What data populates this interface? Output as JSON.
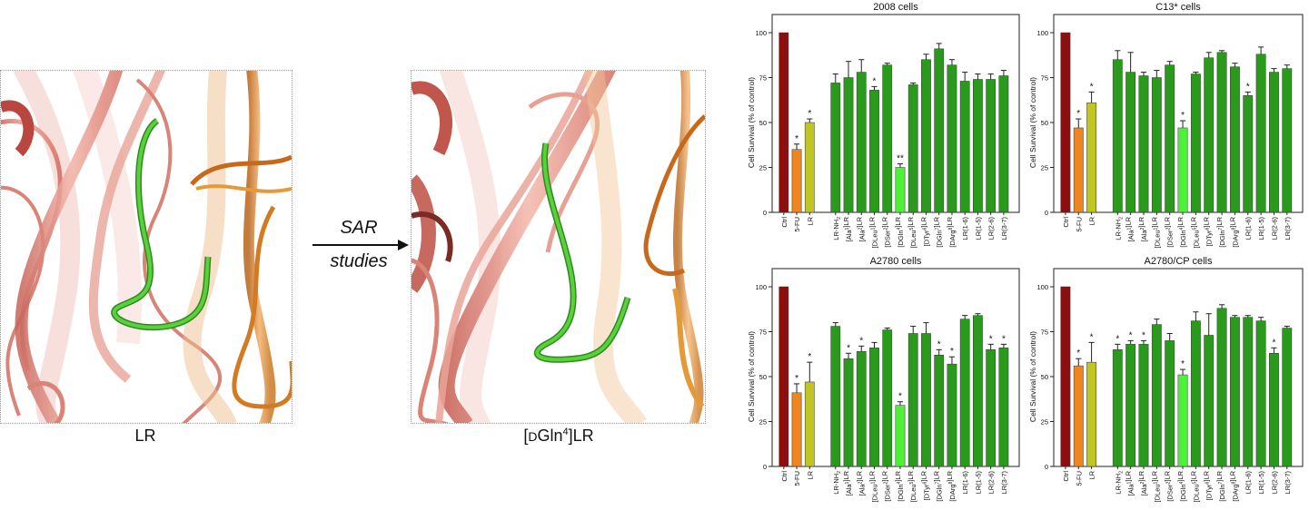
{
  "left_panel": {
    "label": "LR"
  },
  "arrow": {
    "line1": "SAR",
    "line2": "studies"
  },
  "right_panel": {
    "label_prefix": "[",
    "label_d": "D",
    "label_mid": "Gln",
    "label_sup": "4",
    "label_suffix": "]LR"
  },
  "colors": {
    "ctrl": "#8b0f0f",
    "fu": "#f0851d",
    "lr": "#c0c51f",
    "peptide": "#2a9a1c",
    "highlight": "#4ef03a",
    "ribbon_salmon": "#e8978a",
    "ribbon_orange": "#e89a3c",
    "loop_green": "#48c42e"
  },
  "chart_data": [
    {
      "type": "bar",
      "title": "2008 cells",
      "ylabel": "Cell Survival (% of control)",
      "ylim": [
        0,
        100
      ],
      "yticks": [
        "0",
        "25",
        "50",
        "75",
        "100"
      ],
      "categories": [
        "Ctrl",
        "5-FU",
        "LR",
        "LR-NH2",
        "[Ala1]LR",
        "[Ala2]LR",
        "[DLeu1]LR",
        "[DSer2]LR",
        "[DGln4]LR",
        "[DLeu5]LR",
        "[DTyr6]LR",
        "[DGln7]LR",
        "[DArg8]LR",
        "LR(1-6)",
        "LR(1-5)",
        "LR(2-6)",
        "LR(3-7)"
      ],
      "values": [
        100,
        35,
        50,
        72,
        75,
        78,
        68,
        82,
        25,
        71,
        85,
        91,
        82,
        73,
        74,
        74,
        76
      ],
      "errors": [
        0,
        3,
        2,
        5,
        9,
        7,
        2,
        1,
        2,
        1,
        3,
        3,
        3,
        5,
        3,
        3,
        3
      ],
      "marks": [
        "",
        "*",
        "*",
        "",
        "",
        "",
        "*",
        "",
        "**",
        "",
        "",
        "",
        "",
        "",
        "",
        "",
        ""
      ]
    },
    {
      "type": "bar",
      "title": "C13* cells",
      "ylabel": "Cell Survival (% of control)",
      "ylim": [
        0,
        100
      ],
      "yticks": [
        "0",
        "25",
        "50",
        "75",
        "100"
      ],
      "categories": [
        "Ctrl",
        "5-FU",
        "LR",
        "LR-NH2",
        "[Ala1]LR",
        "[Ala2]LR",
        "[DLeu1]LR",
        "[DSer2]LR",
        "[DGln4]LR",
        "[DLeu5]LR",
        "[DTyr6]LR",
        "[DGln7]LR",
        "[DArg8]LR",
        "LR(1-6)",
        "LR(1-5)",
        "LR(2-6)",
        "LR(3-7)"
      ],
      "values": [
        100,
        47,
        61,
        85,
        78,
        76,
        75,
        82,
        47,
        77,
        86,
        89,
        81,
        65,
        88,
        78,
        80
      ],
      "errors": [
        0,
        5,
        6,
        5,
        11,
        2,
        4,
        2,
        4,
        1,
        3,
        1,
        2,
        2,
        4,
        2,
        2
      ],
      "marks": [
        "",
        "*",
        "*",
        "",
        "",
        "",
        "",
        "",
        "*",
        "",
        "",
        "",
        "",
        "*",
        "",
        "",
        ""
      ]
    },
    {
      "type": "bar",
      "title": "A2780 cells",
      "ylabel": "Cell Survival (% of control)",
      "ylim": [
        0,
        100
      ],
      "yticks": [
        "0",
        "25",
        "50",
        "75",
        "100"
      ],
      "categories": [
        "Ctrl",
        "5-FU",
        "LR",
        "LR-NH2",
        "[Ala1]LR",
        "[Ala2]LR",
        "[DLeu1]LR",
        "[DSer2]LR",
        "[DGln4]LR",
        "[DLeu5]LR",
        "[DTyr6]LR",
        "[DGln7]LR",
        "[DArg8]LR",
        "LR(1-6)",
        "LR(1-5)",
        "LR(2-6)",
        "LR(3-7)"
      ],
      "values": [
        100,
        41,
        47,
        78,
        60,
        64,
        66,
        76,
        34,
        74,
        74,
        62,
        57,
        82,
        84,
        65,
        66
      ],
      "errors": [
        0,
        5,
        11,
        2,
        3,
        3,
        3,
        1,
        2,
        4,
        6,
        3,
        4,
        2,
        1,
        3,
        2
      ],
      "marks": [
        "",
        "*",
        "*",
        "",
        "*",
        "*",
        "",
        "",
        "*",
        "",
        "",
        "*",
        "*",
        "",
        "",
        "*",
        "*"
      ]
    },
    {
      "type": "bar",
      "title": "A2780/CP cells",
      "ylabel": "Cell Survival (% of control)",
      "ylim": [
        0,
        100
      ],
      "yticks": [
        "0",
        "25",
        "50",
        "75",
        "100"
      ],
      "categories": [
        "Ctrl",
        "5-FU",
        "LR",
        "LR-NH2",
        "[Ala1]LR",
        "[Ala2]LR",
        "[DLeu1]LR",
        "[DSer2]LR",
        "[DGln4]LR",
        "[DLeu5]LR",
        "[DTyr6]LR",
        "[DGln7]LR",
        "[DArg8]LR",
        "LR(1-6)",
        "LR(1-5)",
        "LR(2-6)",
        "LR(3-7)"
      ],
      "values": [
        100,
        56,
        58,
        65,
        68,
        68,
        79,
        70,
        51,
        81,
        73,
        88,
        83,
        83,
        81,
        63,
        77
      ],
      "errors": [
        0,
        4,
        11,
        3,
        2,
        2,
        3,
        4,
        3,
        5,
        12,
        2,
        1,
        1,
        2,
        3,
        1
      ],
      "marks": [
        "",
        "*",
        "*",
        "*",
        "*",
        "*",
        "",
        "",
        "*",
        "",
        "",
        "",
        "",
        "",
        "",
        "*",
        ""
      ]
    }
  ]
}
